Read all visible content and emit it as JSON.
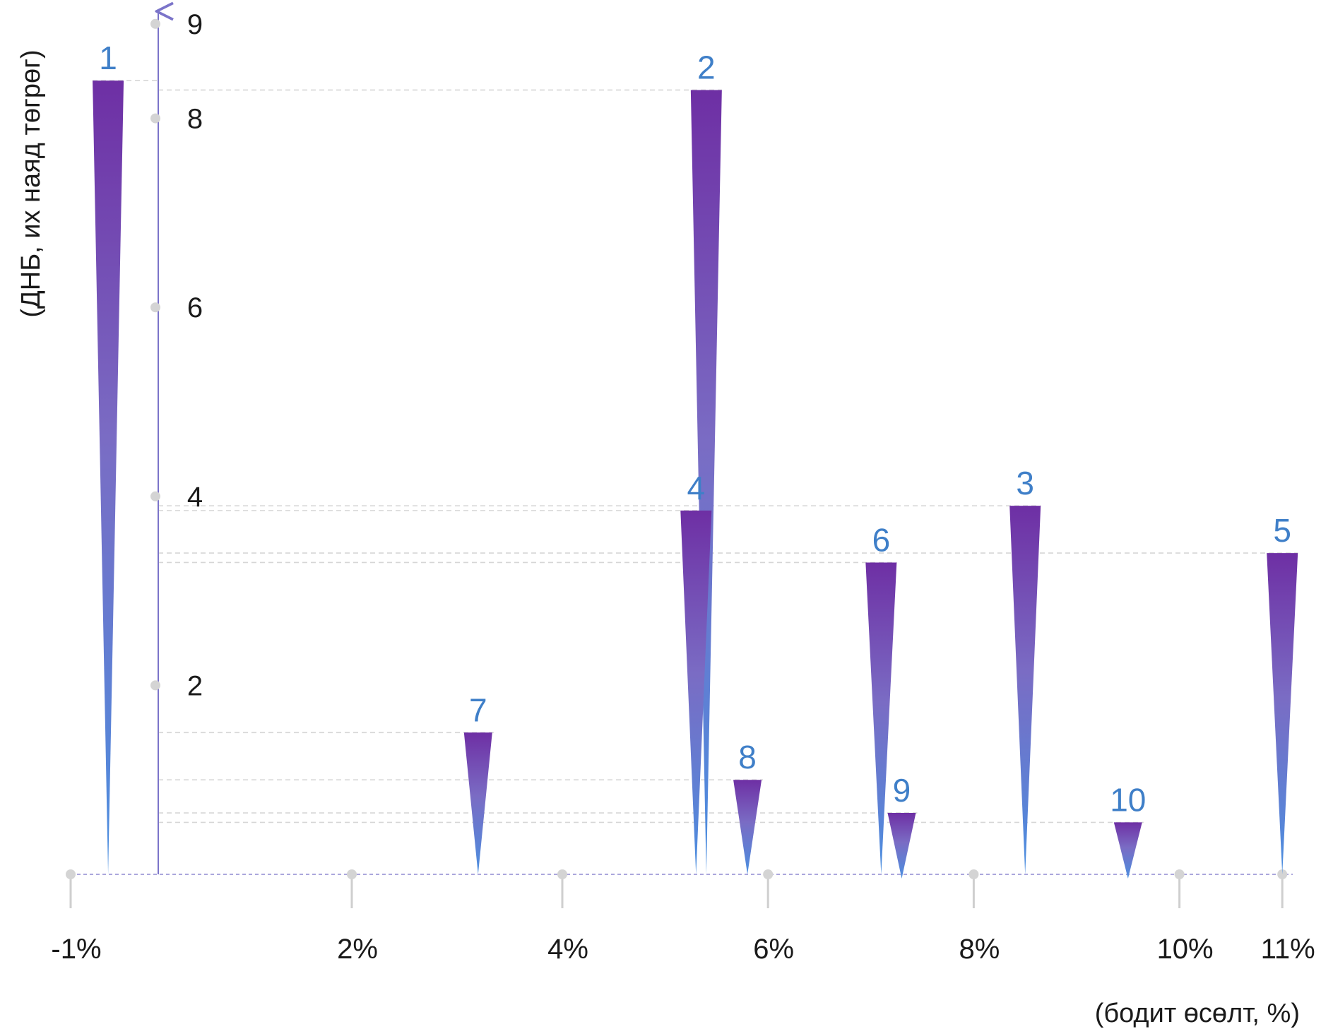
{
  "chart_data": {
    "type": "bar",
    "xlabel": "(бодит өсөлт, %)",
    "ylabel": "(ДНБ, их наяд төгрөг)",
    "x_ticks": [
      -1,
      2,
      4,
      6,
      8,
      10,
      11
    ],
    "x_tick_labels": [
      "-1%",
      "2%",
      "4%",
      "6%",
      "8%",
      "10%",
      "11%"
    ],
    "y_ticks": [
      2,
      4,
      6,
      8,
      9
    ],
    "y_tick_labels": [
      "2",
      "4",
      "6",
      "8",
      "9"
    ],
    "xlim": [
      -1,
      11
    ],
    "ylim": [
      0,
      9
    ],
    "grid": false,
    "colors": {
      "top": "#6e2fa4",
      "bottom": "#4a8fe0",
      "axis": "#7b74c9",
      "label": "#3f7fc8"
    },
    "points": [
      {
        "label": "1",
        "x": -0.6,
        "y": 8.4
      },
      {
        "label": "2",
        "x": 5.4,
        "y": 8.3
      },
      {
        "label": "3",
        "x": 8.5,
        "y": 3.9
      },
      {
        "label": "4",
        "x": 5.3,
        "y": 3.85
      },
      {
        "label": "5",
        "x": 11.0,
        "y": 3.4
      },
      {
        "label": "6",
        "x": 7.1,
        "y": 3.3
      },
      {
        "label": "7",
        "x": 3.2,
        "y": 1.5
      },
      {
        "label": "8",
        "x": 5.8,
        "y": 1.0
      },
      {
        "label": "9",
        "x": 7.3,
        "y": 0.65
      },
      {
        "label": "10",
        "x": 9.5,
        "y": 0.55
      }
    ]
  }
}
